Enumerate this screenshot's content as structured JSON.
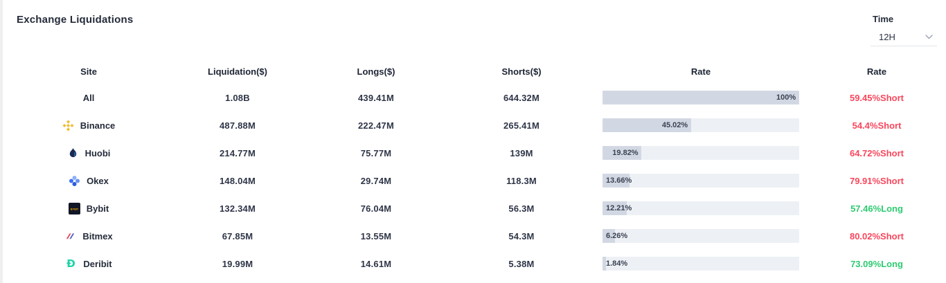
{
  "title": "Exchange Liquidations",
  "time_filter": {
    "label": "Time",
    "value": "12H"
  },
  "colors": {
    "short_color": "#f8465c",
    "long_color": "#2ecb71",
    "bar_fill": "#d2d8e3",
    "bar_track": "#edf1f5"
  },
  "table": {
    "headers": {
      "site": "Site",
      "liquidation": "Liquidation($)",
      "longs": "Longs($)",
      "shorts": "Shorts($)",
      "rate_bar": "Rate",
      "rate": "Rate"
    },
    "rows": [
      {
        "site": "All",
        "icon": null,
        "liquidation": "1.08B",
        "longs": "439.41M",
        "shorts": "644.32M",
        "rate_bar_pct": 100,
        "rate_bar_label": "100%",
        "rate": "59.45%Short",
        "rate_side": "short"
      },
      {
        "site": "Binance",
        "icon": "binance-icon",
        "liquidation": "487.88M",
        "longs": "222.47M",
        "shorts": "265.41M",
        "rate_bar_pct": 45.02,
        "rate_bar_label": "45.02%",
        "rate": "54.4%Short",
        "rate_side": "short"
      },
      {
        "site": "Huobi",
        "icon": "huobi-icon",
        "liquidation": "214.77M",
        "longs": "75.77M",
        "shorts": "139M",
        "rate_bar_pct": 19.82,
        "rate_bar_label": "19.82%",
        "rate": "64.72%Short",
        "rate_side": "short"
      },
      {
        "site": "Okex",
        "icon": "okex-icon",
        "liquidation": "148.04M",
        "longs": "29.74M",
        "shorts": "118.3M",
        "rate_bar_pct": 13.66,
        "rate_bar_label": "13.66%",
        "rate": "79.91%Short",
        "rate_side": "short"
      },
      {
        "site": "Bybit",
        "icon": "bybit-icon",
        "liquidation": "132.34M",
        "longs": "76.04M",
        "shorts": "56.3M",
        "rate_bar_pct": 12.21,
        "rate_bar_label": "12.21%",
        "rate": "57.46%Long",
        "rate_side": "long"
      },
      {
        "site": "Bitmex",
        "icon": "bitmex-icon",
        "liquidation": "67.85M",
        "longs": "13.55M",
        "shorts": "54.3M",
        "rate_bar_pct": 6.26,
        "rate_bar_label": "6.26%",
        "rate": "80.02%Short",
        "rate_side": "short"
      },
      {
        "site": "Deribit",
        "icon": "deribit-icon",
        "liquidation": "19.99M",
        "longs": "14.61M",
        "shorts": "5.38M",
        "rate_bar_pct": 1.84,
        "rate_bar_label": "1.84%",
        "rate": "73.09%Long",
        "rate_side": "long"
      }
    ]
  }
}
